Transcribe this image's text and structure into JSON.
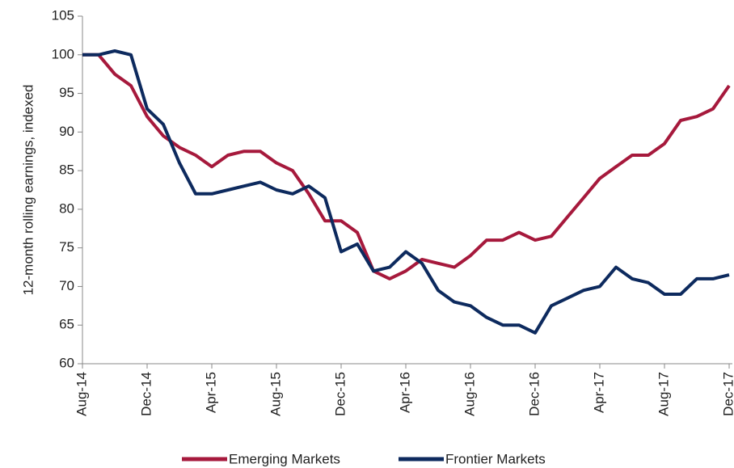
{
  "chart_data": {
    "type": "line",
    "y_label": "12-month rolling earnings, indexed",
    "categories": [
      "Aug-14",
      null,
      null,
      null,
      "Dec-14",
      null,
      null,
      null,
      "Apr-15",
      null,
      null,
      null,
      "Aug-15",
      null,
      null,
      null,
      "Dec-15",
      null,
      null,
      null,
      "Apr-16",
      null,
      null,
      null,
      "Aug-16",
      null,
      null,
      null,
      "Dec-16",
      null,
      null,
      null,
      "Apr-17",
      null,
      null,
      null,
      "Aug-17",
      null,
      null,
      null,
      "Dec-17"
    ],
    "series": [
      {
        "name": "Emerging Markets",
        "color": "#a6193c",
        "values": [
          100,
          100,
          97.5,
          96,
          92,
          89.5,
          88,
          87,
          85.5,
          87,
          87.5,
          87.5,
          86,
          85,
          82,
          78.5,
          78.5,
          77,
          72,
          71,
          72,
          73.5,
          73,
          72.5,
          74,
          76,
          76,
          77,
          76,
          76.5,
          79,
          81.5,
          84,
          85.5,
          87,
          87,
          88.5,
          91.5,
          92,
          93,
          96
        ]
      },
      {
        "name": "Frontier Markets",
        "color": "#0d2a5e",
        "values": [
          100,
          100,
          100.5,
          100,
          93,
          91,
          86,
          82,
          82,
          82.5,
          83,
          83.5,
          82.5,
          82,
          83,
          81.5,
          74.5,
          75.5,
          72,
          72.5,
          74.5,
          73,
          69.5,
          68,
          67.5,
          66,
          65,
          65,
          64,
          67.5,
          68.5,
          69.5,
          70,
          72.5,
          71,
          70.5,
          69,
          69,
          71,
          71,
          71.5
        ]
      }
    ],
    "ylim": [
      60,
      105
    ],
    "yticks": [
      60,
      65,
      70,
      75,
      80,
      85,
      90,
      95,
      100,
      105
    ],
    "legend": "bottom"
  }
}
